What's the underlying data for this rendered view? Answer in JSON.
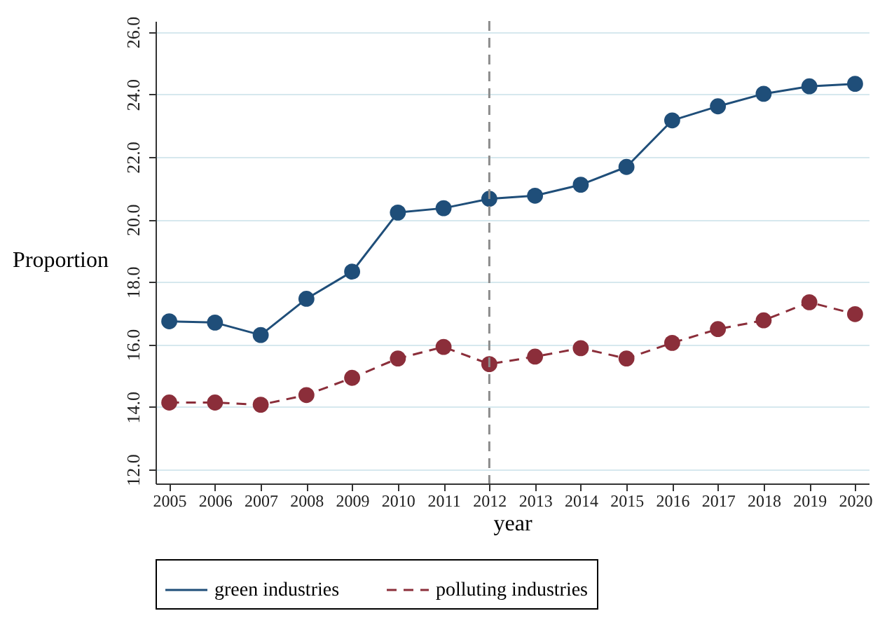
{
  "chart_data": {
    "type": "line",
    "xlabel": "year",
    "ylabel": "Proportion",
    "x": [
      2005,
      2006,
      2007,
      2008,
      2009,
      2010,
      2011,
      2012,
      2013,
      2014,
      2015,
      2016,
      2017,
      2018,
      2019,
      2020
    ],
    "xlim": [
      2004.7,
      2020.3
    ],
    "xticks": [
      2005,
      2006,
      2007,
      2008,
      2009,
      2010,
      2011,
      2012,
      2013,
      2014,
      2015,
      2016,
      2017,
      2018,
      2019,
      2020
    ],
    "ylim": [
      11.55,
      26.35
    ],
    "yticks": [
      {
        "value": 12,
        "label": "12.0"
      },
      {
        "value": 14,
        "label": "14.0"
      },
      {
        "value": 16,
        "label": "16.0"
      },
      {
        "value": 18,
        "label": "18.0"
      },
      {
        "value": 20,
        "label": "20.0"
      },
      {
        "value": 22,
        "label": "22.0"
      },
      {
        "value": 24,
        "label": "24.0"
      },
      {
        "value": 26,
        "label": "26.0"
      }
    ],
    "series": [
      {
        "name": "green industries",
        "color": "#1f4e79",
        "line_style": "solid",
        "values": [
          16.74,
          16.7,
          16.3,
          17.46,
          18.33,
          20.22,
          20.36,
          20.66,
          20.76,
          21.11,
          21.68,
          23.17,
          23.62,
          24.02,
          24.26,
          24.34
        ]
      },
      {
        "name": "polluting industries",
        "color": "#8b2e3a",
        "line_style": "dashed",
        "values": [
          14.14,
          14.14,
          14.07,
          14.38,
          14.93,
          15.55,
          15.92,
          15.37,
          15.61,
          15.88,
          15.55,
          16.05,
          16.49,
          16.77,
          17.35,
          16.97
        ]
      }
    ],
    "ref_lines": [
      {
        "axis": "x",
        "value": 2012,
        "color": "#8c8c8c",
        "line_style": "dashed"
      }
    ],
    "grid": "y",
    "legend": "bottom",
    "marker": "circle"
  }
}
